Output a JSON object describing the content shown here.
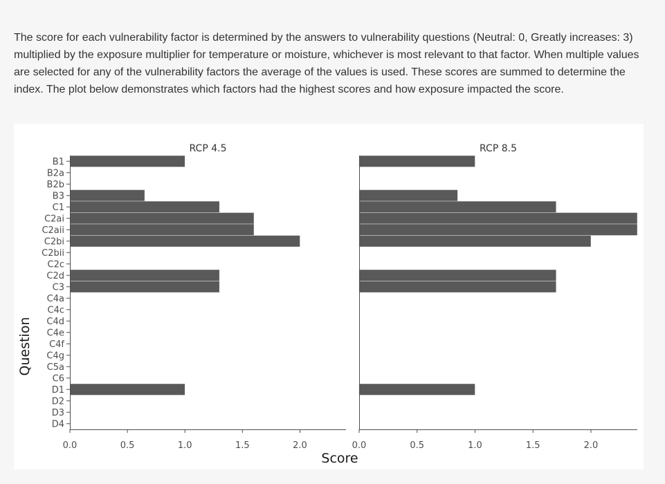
{
  "intro_text": "The score for each vulnerability factor is determined by the answers to vulnerability questions (Neutral: 0, Greatly increases: 3) multiplied by the exposure multiplier for temperature or moisture, whichever is most relevant to that factor. When multiple values are selected for any of the vulnerability factors the average of the values is used. These scores are summed to determine the index. The plot below demonstrates which factors had the highest scores and how exposure impacted the score.",
  "colors": {
    "bar": "#595959",
    "panel_bg": "#ffffff",
    "page_bg": "#f6f6f6"
  },
  "chart_data": {
    "type": "bar",
    "orientation": "horizontal",
    "xlabel": "Score",
    "ylabel": "Question",
    "categories": [
      "B1",
      "B2a",
      "B2b",
      "B3",
      "C1",
      "C2ai",
      "C2aii",
      "C2bi",
      "C2bii",
      "C2c",
      "C2d",
      "C3",
      "C4a",
      "C4c",
      "C4d",
      "C4e",
      "C4f",
      "C4g",
      "C5a",
      "C6",
      "D1",
      "D2",
      "D3",
      "D4"
    ],
    "xticks": [
      0.0,
      0.5,
      1.0,
      1.5,
      2.0
    ],
    "xtick_labels": [
      "0.0",
      "0.5",
      "1.0",
      "1.5",
      "2.0"
    ],
    "grid": false,
    "series": [
      {
        "name": "RCP 4.5",
        "xlim": [
          0,
          2.4
        ],
        "values": [
          1.0,
          0,
          0,
          0.65,
          1.3,
          1.6,
          1.6,
          2.0,
          0,
          0,
          1.3,
          1.3,
          0,
          0,
          0,
          0,
          0,
          0,
          0,
          0,
          1.0,
          0,
          0,
          0
        ]
      },
      {
        "name": "RCP 8.5",
        "xlim": [
          0,
          2.4
        ],
        "values": [
          1.0,
          0,
          0,
          0.85,
          1.7,
          2.4,
          2.4,
          2.0,
          0,
          0,
          1.7,
          1.7,
          0,
          0,
          0,
          0,
          0,
          0,
          0,
          0,
          1.0,
          0,
          0,
          0
        ]
      }
    ]
  }
}
